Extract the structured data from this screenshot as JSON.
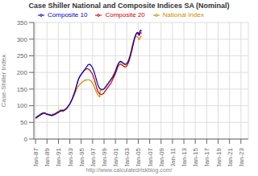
{
  "chart_data": {
    "type": "line",
    "title": "Case Shiller National and Composite Indices SA (Nominal)",
    "y_label": "Case-Shiller Index",
    "annotations": [
      "http://www.calculatedriskblog.com/"
    ],
    "grid": true,
    "legend": "upper center",
    "xlim": [
      1986.7,
      2024.3
    ],
    "xticks": [
      {
        "value": 1987,
        "label": "Jan-87"
      },
      {
        "value": 1989,
        "label": "Jan-89"
      },
      {
        "value": 1991,
        "label": "Jan-91"
      },
      {
        "value": 1993,
        "label": "Jan-93"
      },
      {
        "value": 1995,
        "label": "Jan-95"
      },
      {
        "value": 1997,
        "label": "Jan-97"
      },
      {
        "value": 1999,
        "label": "Jan-99"
      },
      {
        "value": 2001,
        "label": "Jan-01"
      },
      {
        "value": 2003,
        "label": "Jan-03"
      },
      {
        "value": 2005,
        "label": "Jan-05"
      },
      {
        "value": 2007,
        "label": "Jan-07"
      },
      {
        "value": 2009,
        "label": "Jan-09"
      },
      {
        "value": 2011,
        "label": "Jan-11"
      },
      {
        "value": 2013,
        "label": "Jan-13"
      },
      {
        "value": 2015,
        "label": "Jan-15"
      },
      {
        "value": 2017,
        "label": "Jan-17"
      },
      {
        "value": 2019,
        "label": "Jan-19"
      },
      {
        "value": 2021,
        "label": "Jan-21"
      },
      {
        "value": 2023,
        "label": "Jan-23"
      }
    ],
    "ylim": [
      0,
      350
    ],
    "yticks": [
      0,
      50,
      100,
      150,
      200,
      250,
      300,
      350
    ],
    "x": [
      1987,
      1987.0833333333,
      1987.1666666667,
      1987.25,
      1987.3333333333,
      1987.4166666667,
      1987.5,
      1987.5833333333,
      1987.6666666667,
      1987.75,
      1987.8333333333,
      1987.9166666667,
      1988,
      1988.0833333333,
      1988.1666666667,
      1988.25,
      1988.3333333333,
      1988.4166666667,
      1988.5,
      1988.5833333333,
      1988.6666666667,
      1988.75,
      1988.8333333333,
      1988.9166666667,
      1989,
      1989.0833333333,
      1989.1666666667,
      1989.25,
      1989.3333333333,
      1989.4166666667,
      1989.5,
      1989.5833333333,
      1989.6666666667,
      1989.75,
      1989.8333333333,
      1989.9166666667,
      1990,
      1990.0833333333,
      1990.1666666667,
      1990.25,
      1990.3333333333,
      1990.4166666667,
      1990.5,
      1990.5833333333,
      1990.6666666667,
      1990.75,
      1990.8333333333,
      1990.9166666667,
      1991,
      1991.0833333333,
      1991.1666666667,
      1991.25,
      1991.3333333333,
      1991.4166666667,
      1991.5,
      1991.5833333333,
      1991.6666666667,
      1991.75,
      1991.8333333333,
      1991.9166666667,
      1992,
      1992.0833333333,
      1992.1666666667,
      1992.25,
      1992.3333333333,
      1992.4166666667,
      1992.5,
      1992.5833333333,
      1992.6666666667,
      1992.75,
      1992.8333333333,
      1992.9166666667,
      1993,
      1993.0833333333,
      1993.1666666667,
      1993.25,
      1993.3333333333,
      1993.4166666667,
      1993.5,
      1993.5833333333,
      1993.6666666667,
      1993.75,
      1993.8333333333,
      1993.9166666667,
      1994,
      1994.0833333333,
      1994.1666666667,
      1994.25,
      1994.3333333333,
      1994.4166666667,
      1994.5,
      1994.5833333333,
      1994.6666666667,
      1994.75,
      1994.8333333333,
      1994.9166666667,
      1995,
      1995.0833333333,
      1995.1666666667,
      1995.25,
      1995.3333333333,
      1995.4166666667,
      1995.5,
      1995.5833333333,
      1995.6666666667,
      1995.75,
      1995.8333333333,
      1995.9166666667,
      1996,
      1996.0833333333,
      1996.1666666667,
      1996.25,
      1996.3333333333,
      1996.4166666667,
      1996.5,
      1996.5833333333,
      1996.6666666667,
      1996.75,
      1996.8333333333,
      1996.9166666667,
      1997,
      1997.0833333333,
      1997.1666666667,
      1997.25,
      1997.3333333333,
      1997.4166666667,
      1997.5,
      1997.5833333333,
      1997.6666666667,
      1997.75,
      1997.8333333333,
      1997.9166666667,
      1998,
      1998.0833333333,
      1998.1666666667,
      1998.25,
      1998.3333333333,
      1998.4166666667,
      1998.5,
      1998.5833333333,
      1998.6666666667,
      1998.75,
      1998.8333333333,
      1998.9166666667,
      1999,
      1999.0833333333,
      1999.1666666667,
      1999.25,
      1999.3333333333,
      1999.4166666667,
      1999.5,
      1999.5833333333,
      1999.6666666667,
      1999.75,
      1999.8333333333,
      1999.9166666667,
      2000,
      2000.0833333333,
      2000.1666666667,
      2000.25,
      2000.3333333333,
      2000.4166666667,
      2000.5,
      2000.5833333333,
      2000.6666666667,
      2000.75,
      2000.8333333333,
      2000.9166666667,
      2001,
      2001.0833333333,
      2001.1666666667,
      2001.25,
      2001.3333333333,
      2001.4166666667,
      2001.5,
      2001.5833333333,
      2001.6666666667,
      2001.75,
      2001.8333333333,
      2001.9166666667,
      2002,
      2002.0833333333,
      2002.1666666667,
      2002.25,
      2002.3333333333,
      2002.4166666667,
      2002.5,
      2002.5833333333,
      2002.6666666667,
      2002.75,
      2002.8333333333,
      2002.9166666667,
      2003,
      2003.0833333333,
      2003.1666666667,
      2003.25,
      2003.3333333333,
      2003.4166666667,
      2003.5,
      2003.5833333333,
      2003.6666666667,
      2003.75,
      2003.8333333333,
      2003.9166666667,
      2004,
      2004.0833333333,
      2004.1666666667,
      2004.25,
      2004.3333333333,
      2004.4166666667,
      2004.5,
      2004.5833333333,
      2004.6666666667,
      2004.75,
      2004.8333333333,
      2004.9166666667,
      2005,
      2005.0833333333,
      2005.1666666667,
      2005.25,
      2005.3333333333,
      2005.4166666667,
      2005.5,
      2005.5833333333
    ],
    "series": [
      {
        "name": "National Index",
        "color": "#cc8800",
        "values": [
          65,
          66,
          67,
          68,
          69,
          70,
          71,
          72,
          73,
          74,
          75,
          76,
          76,
          77,
          77,
          78,
          78,
          78,
          78,
          77,
          77,
          76,
          76,
          75,
          75,
          75,
          74,
          74,
          74,
          74,
          74,
          74,
          73,
          73,
          73,
          74,
          74,
          75,
          75,
          76,
          77,
          77,
          78,
          79,
          80,
          81,
          82,
          83,
          83,
          84,
          85,
          86,
          87,
          87,
          88,
          88,
          88,
          88,
          88,
          88,
          89,
          89,
          90,
          91,
          92,
          93,
          95,
          96,
          98,
          100,
          102,
          104,
          106,
          108,
          111,
          113,
          116,
          119,
          122,
          125,
          128,
          131,
          134,
          137,
          141,
          144,
          148,
          151,
          154,
          157,
          159,
          161,
          163,
          164,
          166,
          167,
          168,
          169,
          170,
          172,
          173,
          174,
          175,
          176,
          176,
          177,
          177,
          177,
          178,
          178,
          178,
          178,
          178,
          178,
          177,
          176,
          175,
          174,
          172,
          170,
          168,
          165,
          162,
          159,
          156,
          152,
          149,
          145,
          141,
          138,
          135,
          132,
          130,
          129,
          128,
          127,
          147,
          147,
          147,
          147,
          147,
          148,
          149,
          150,
          151,
          153,
          155,
          157,
          159,
          161,
          163,
          165,
          167,
          169,
          171,
          173,
          175,
          177,
          179,
          181,
          183,
          185,
          188,
          191,
          194,
          197,
          200,
          203,
          206,
          210,
          213,
          217,
          221,
          224,
          227,
          229,
          230,
          231,
          231,
          231,
          230,
          229,
          228,
          227,
          226,
          225,
          224,
          224,
          223,
          223,
          224,
          225,
          227,
          229,
          232,
          235,
          239,
          244,
          249,
          255,
          261,
          267,
          273,
          279,
          285,
          290,
          295,
          299,
          302,
          305,
          307,
          308,
          308,
          308,
          306,
          305,
          303,
          301,
          299,
          301,
          305,
          308,
          308,
          307
        ]
      },
      {
        "name": "Composite 20",
        "color": "#cc0000",
        "values": [
          62,
          63,
          64,
          65,
          66,
          67,
          68,
          69,
          70,
          71,
          72,
          73,
          74,
          74,
          75,
          76,
          77,
          77,
          77,
          77,
          76,
          76,
          75,
          74,
          74,
          73,
          73,
          73,
          72,
          72,
          72,
          72,
          71,
          71,
          71,
          71,
          72,
          72,
          72,
          73,
          74,
          74,
          75,
          76,
          77,
          78,
          79,
          80,
          80,
          81,
          82,
          83,
          84,
          84,
          85,
          85,
          85,
          85,
          85,
          85,
          86,
          87,
          88,
          89,
          90,
          91,
          93,
          95,
          97,
          99,
          101,
          103,
          105,
          108,
          111,
          114,
          117,
          120,
          124,
          128,
          132,
          136,
          140,
          144,
          149,
          154,
          159,
          164,
          169,
          174,
          178,
          182,
          185,
          188,
          190,
          192,
          194,
          196,
          198,
          200,
          202,
          203,
          205,
          206,
          208,
          209,
          210,
          211,
          211,
          211,
          211,
          210,
          209,
          208,
          207,
          205,
          203,
          201,
          199,
          197,
          194,
          190,
          186,
          182,
          177,
          172,
          167,
          162,
          157,
          152,
          148,
          144,
          141,
          139,
          137,
          136,
          135,
          134,
          134,
          134,
          134,
          135,
          136,
          137,
          139,
          141,
          143,
          145,
          147,
          149,
          151,
          153,
          155,
          157,
          159,
          161,
          163,
          165,
          167,
          169,
          172,
          175,
          178,
          181,
          184,
          187,
          190,
          193,
          196,
          200,
          204,
          208,
          212,
          216,
          219,
          221,
          223,
          224,
          225,
          225,
          224,
          223,
          222,
          221,
          220,
          219,
          218,
          217,
          217,
          217,
          217,
          218,
          220,
          222,
          225,
          228,
          232,
          236,
          241,
          246,
          252,
          258,
          264,
          270,
          277,
          284,
          290,
          296,
          302,
          307,
          311,
          314,
          316,
          317,
          317,
          316,
          315,
          313,
          311,
          314,
          318,
          320,
          319,
          317
        ]
      },
      {
        "name": "Composite 10",
        "color": "#0000cc",
        "values": [
          63,
          64,
          65,
          66,
          67,
          68,
          69,
          70,
          71,
          72,
          73,
          74,
          75,
          76,
          77,
          78,
          79,
          79,
          79,
          79,
          78,
          77,
          76,
          75,
          75,
          74,
          74,
          74,
          73,
          73,
          72,
          72,
          71,
          71,
          71,
          71,
          72,
          72,
          73,
          73,
          74,
          75,
          75,
          76,
          77,
          78,
          79,
          80,
          80,
          81,
          82,
          83,
          84,
          84,
          85,
          85,
          85,
          85,
          85,
          85,
          86,
          87,
          88,
          89,
          90,
          91,
          93,
          95,
          97,
          99,
          101,
          103,
          105,
          108,
          111,
          114,
          117,
          120,
          124,
          128,
          132,
          136,
          140,
          144,
          149,
          154,
          159,
          164,
          169,
          174,
          178,
          182,
          185,
          188,
          190,
          192,
          194,
          196,
          198,
          200,
          202,
          204,
          206,
          208,
          210,
          212,
          214,
          216,
          218,
          220,
          222,
          223,
          224,
          224,
          224,
          223,
          222,
          220,
          218,
          216,
          213,
          210,
          206,
          202,
          198,
          193,
          188,
          183,
          178,
          173,
          168,
          163,
          159,
          156,
          154,
          152,
          151,
          150,
          149,
          149,
          149,
          149,
          149,
          150,
          151,
          152,
          153,
          155,
          157,
          159,
          161,
          163,
          165,
          167,
          169,
          171,
          173,
          175,
          177,
          179,
          181,
          183,
          185,
          187,
          190,
          193,
          196,
          199,
          203,
          207,
          211,
          215,
          219,
          223,
          226,
          228,
          230,
          232,
          233,
          233,
          233,
          232,
          231,
          230,
          229,
          228,
          227,
          226,
          225,
          225,
          225,
          226,
          227,
          229,
          231,
          234,
          237,
          241,
          245,
          249,
          254,
          259,
          264,
          270,
          276,
          282,
          288,
          294,
          300,
          306,
          310,
          314,
          317,
          319,
          320,
          320,
          319,
          317,
          315,
          320,
          325,
          327,
          326,
          324
        ]
      }
    ]
  }
}
